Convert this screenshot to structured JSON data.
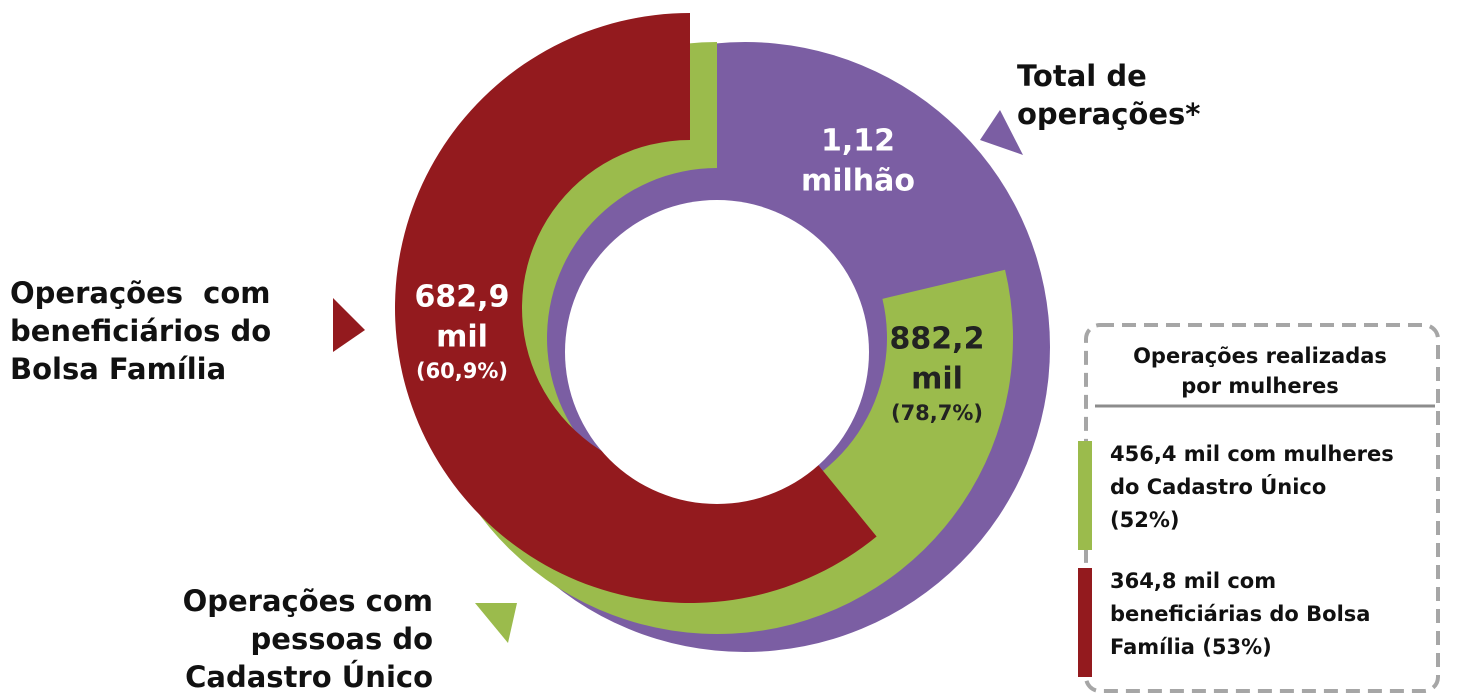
{
  "chart_data": {
    "type": "nested-donut",
    "series": [
      {
        "name_lines": [
          "Total de",
          "operações*"
        ],
        "color": "#7b5ea3",
        "value_label_lines": [
          "1,12",
          "milhão"
        ]
      },
      {
        "name_lines": [
          "Operações com",
          "pessoas do",
          "Cadastro Único"
        ],
        "color": "#9bbb4c",
        "value_label_lines": [
          "882,2",
          "mil"
        ],
        "value": 78.7,
        "value_label": "(78,7%)"
      },
      {
        "name_lines": [
          "Operações  com",
          "beneficiários do",
          "Bolsa Família"
        ],
        "color": "#931a1e",
        "value_label_lines": [
          "682,9",
          "mil"
        ],
        "value": 60.9,
        "value_label": "(60,9%)"
      }
    ],
    "legend": {
      "title_lines": [
        "Operações realizadas",
        "por mulheres"
      ],
      "items": [
        {
          "color": "#9bbb4c",
          "lines": [
            "456,4 mil com mulheres",
            "do Cadastro Único",
            "(52%)"
          ]
        },
        {
          "color": "#931a1e",
          "lines": [
            "364,8 mil com",
            "beneficiárias do Bolsa",
            "Família (53%)"
          ]
        }
      ]
    }
  }
}
